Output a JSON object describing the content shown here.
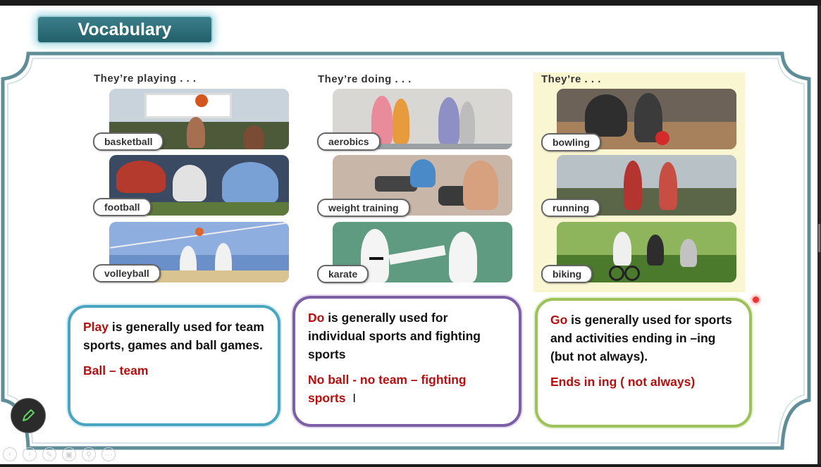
{
  "slide": {
    "title": "Vocabulary",
    "columns": [
      {
        "heading": "They’re playing . . .",
        "items": [
          "basketball",
          "football",
          "volleyball"
        ]
      },
      {
        "heading": "They’re doing . . .",
        "items": [
          "aerobics",
          "weight training",
          "karate"
        ]
      },
      {
        "heading": "They’re . . .",
        "items": [
          "bowling",
          "running",
          "biking"
        ]
      }
    ],
    "notes": [
      {
        "keyword": "Play",
        "text": " is generally used for team sports, games and ball games.",
        "summary": "Ball – team",
        "border_color": "#4aa6c0"
      },
      {
        "keyword": "Do",
        "text": " is generally used for individual sports and fighting sports",
        "summary": "No ball -  no team – fighting sports",
        "border_color": "#7d5fa6"
      },
      {
        "keyword": "Go",
        "text": " is generally used for sports and activities ending in –ing (but not always).",
        "summary": "Ends in ing ( not always)",
        "border_color": "#9dc25a"
      }
    ],
    "typed_cursor": "I"
  },
  "colors": {
    "frame": "#5f8e98",
    "title_bg": "#2c6c77",
    "keyword_red": "#b50f0f",
    "highlight_bg": "#fbf6d2"
  },
  "toolbar": {
    "pen_icon": "pencil-icon",
    "controls": [
      "previous-icon",
      "next-icon",
      "pen-icon",
      "screen-icon",
      "zoom-icon",
      "more-icon"
    ]
  }
}
